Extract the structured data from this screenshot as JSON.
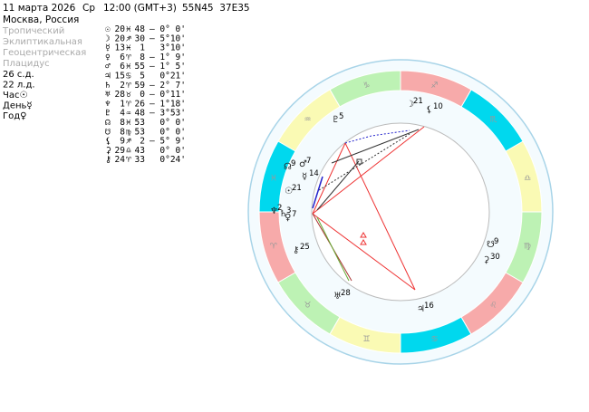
{
  "header": {
    "date": "11 марта 2026",
    "weekday": "Ср",
    "time": "12:00 (GMT+3)",
    "coords": "55N45  37E35",
    "place": "Москва, Россия"
  },
  "settings": [
    "Тропический",
    "Эклиптикальная",
    "Геоцентрическая",
    "Плацидус"
  ],
  "info": [
    "26 с.д.",
    "22 л.д.",
    "Час☉",
    "День☿",
    "Год♀"
  ],
  "planets": [
    {
      "glyph": "☉",
      "deg": "20",
      "sign": "♓︎",
      "min": "48",
      "lat": "– 0° 0'"
    },
    {
      "glyph": "☽",
      "deg": "20",
      "sign": "♐︎",
      "min": "30",
      "lat": "– 5°10'"
    },
    {
      "glyph": "☿",
      "deg": "13",
      "sign": "♓︎",
      "min": "1",
      "lat": "3°10'"
    },
    {
      "glyph": "♀",
      "deg": "6",
      "sign": "♈︎",
      "min": "8",
      "lat": "– 1° 9'"
    },
    {
      "glyph": "♂",
      "deg": "6",
      "sign": "♓︎",
      "min": "55",
      "lat": "– 1° 5'"
    },
    {
      "glyph": "♃",
      "deg": "15",
      "sign": "♋︎",
      "min": "5",
      "lat": "0°21'"
    },
    {
      "glyph": "♄",
      "deg": "2",
      "sign": "♈︎",
      "min": "59",
      "lat": "– 2° 7'"
    },
    {
      "glyph": "♅",
      "deg": "28",
      "sign": "♉︎",
      "min": "0",
      "lat": "– 0°11'"
    },
    {
      "glyph": "♆",
      "deg": "1",
      "sign": "♈︎",
      "min": "26",
      "lat": "– 1°18'"
    },
    {
      "glyph": "♇",
      "deg": "4",
      "sign": "♒︎",
      "min": "48",
      "lat": "– 3°53'"
    },
    {
      "glyph": "☊",
      "deg": "8",
      "sign": "♓︎",
      "min": "53",
      "lat": "0° 0'"
    },
    {
      "glyph": "☋",
      "deg": "8",
      "sign": "♍︎",
      "min": "53",
      "lat": "0° 0'"
    },
    {
      "glyph": "⚸",
      "deg": "9",
      "sign": "♐︎",
      "min": "2",
      "lat": "– 5° 9'"
    },
    {
      "glyph": "⚳",
      "deg": "29",
      "sign": "♎︎",
      "min": "43",
      "lat": "0° 0'"
    },
    {
      "glyph": "⚷",
      "deg": "24",
      "sign": "♈︎",
      "min": "33",
      "lat": "0°24'"
    }
  ],
  "signs": [
    "♈︎",
    "♉︎",
    "♊︎",
    "♋︎",
    "♌︎",
    "♍︎",
    "♎︎",
    "♏︎",
    "♐︎",
    "♑︎",
    "♒︎",
    "♓︎"
  ],
  "wheel_labels": [
    {
      "glyph": "☽",
      "num": "21"
    },
    {
      "glyph": "⚸",
      "num": "10"
    },
    {
      "glyph": "♇",
      "num": "5"
    },
    {
      "glyph": "☊",
      "num": "9"
    },
    {
      "glyph": "♂",
      "num": "7"
    },
    {
      "glyph": "☿",
      "num": "14"
    },
    {
      "glyph": "☉",
      "num": "21"
    },
    {
      "glyph": "♆",
      "num": "2"
    },
    {
      "glyph": "♄",
      "num": "3"
    },
    {
      "glyph": "♀",
      "num": "7"
    },
    {
      "glyph": "⚷",
      "num": "25"
    },
    {
      "glyph": "♅",
      "num": "28"
    },
    {
      "glyph": "♃",
      "num": "16"
    },
    {
      "glyph": "☋",
      "num": "9"
    },
    {
      "glyph": "⚳",
      "num": "30"
    }
  ]
}
